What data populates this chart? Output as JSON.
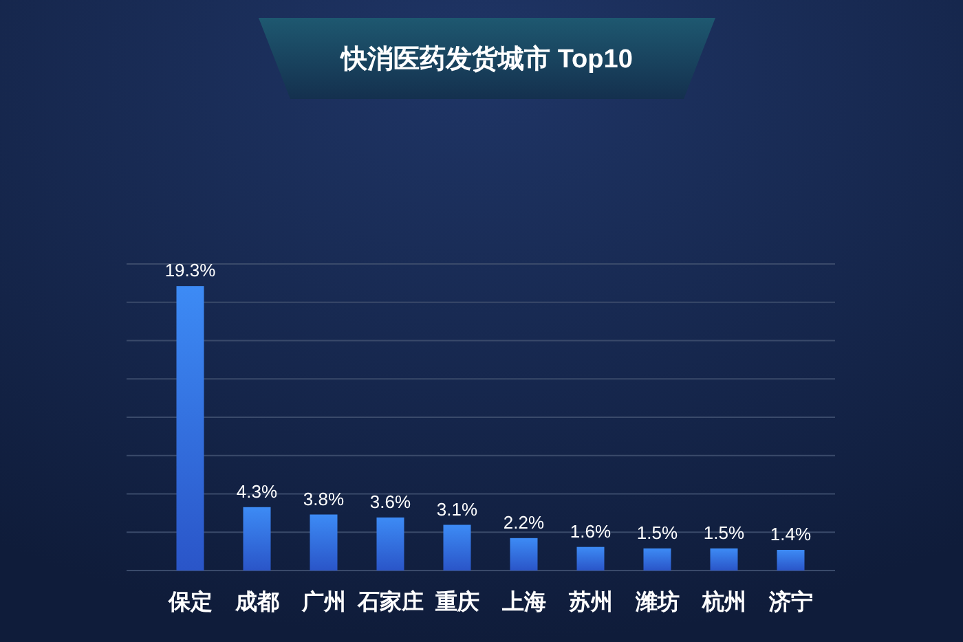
{
  "chart_data": {
    "type": "bar",
    "title": "快消医药发货城市 Top10",
    "categories": [
      "保定",
      "成都",
      "广州",
      "石家庄",
      "重庆",
      "上海",
      "苏州",
      "潍坊",
      "杭州",
      "济宁"
    ],
    "values": [
      19.3,
      4.3,
      3.8,
      3.6,
      3.1,
      2.2,
      1.6,
      1.5,
      1.5,
      1.4
    ],
    "value_labels": [
      "19.3%",
      "4.3%",
      "3.8%",
      "3.6%",
      "3.1%",
      "2.2%",
      "1.6%",
      "1.5%",
      "1.5%",
      "1.4%"
    ],
    "color": "#3d8bf5",
    "grid": "y",
    "ylim": [
      0,
      20.8
    ],
    "yticks": [
      {
        "value": 0,
        "label": null
      },
      {
        "value": 2.6,
        "label": null
      },
      {
        "value": 5.2,
        "label": null
      },
      {
        "value": 7.8,
        "label": null
      },
      {
        "value": 10.4,
        "label": null
      },
      {
        "value": 13,
        "label": null
      },
      {
        "value": 15.6,
        "label": null
      },
      {
        "value": 18.2,
        "label": null
      },
      {
        "value": 20.8,
        "label": null
      }
    ]
  }
}
